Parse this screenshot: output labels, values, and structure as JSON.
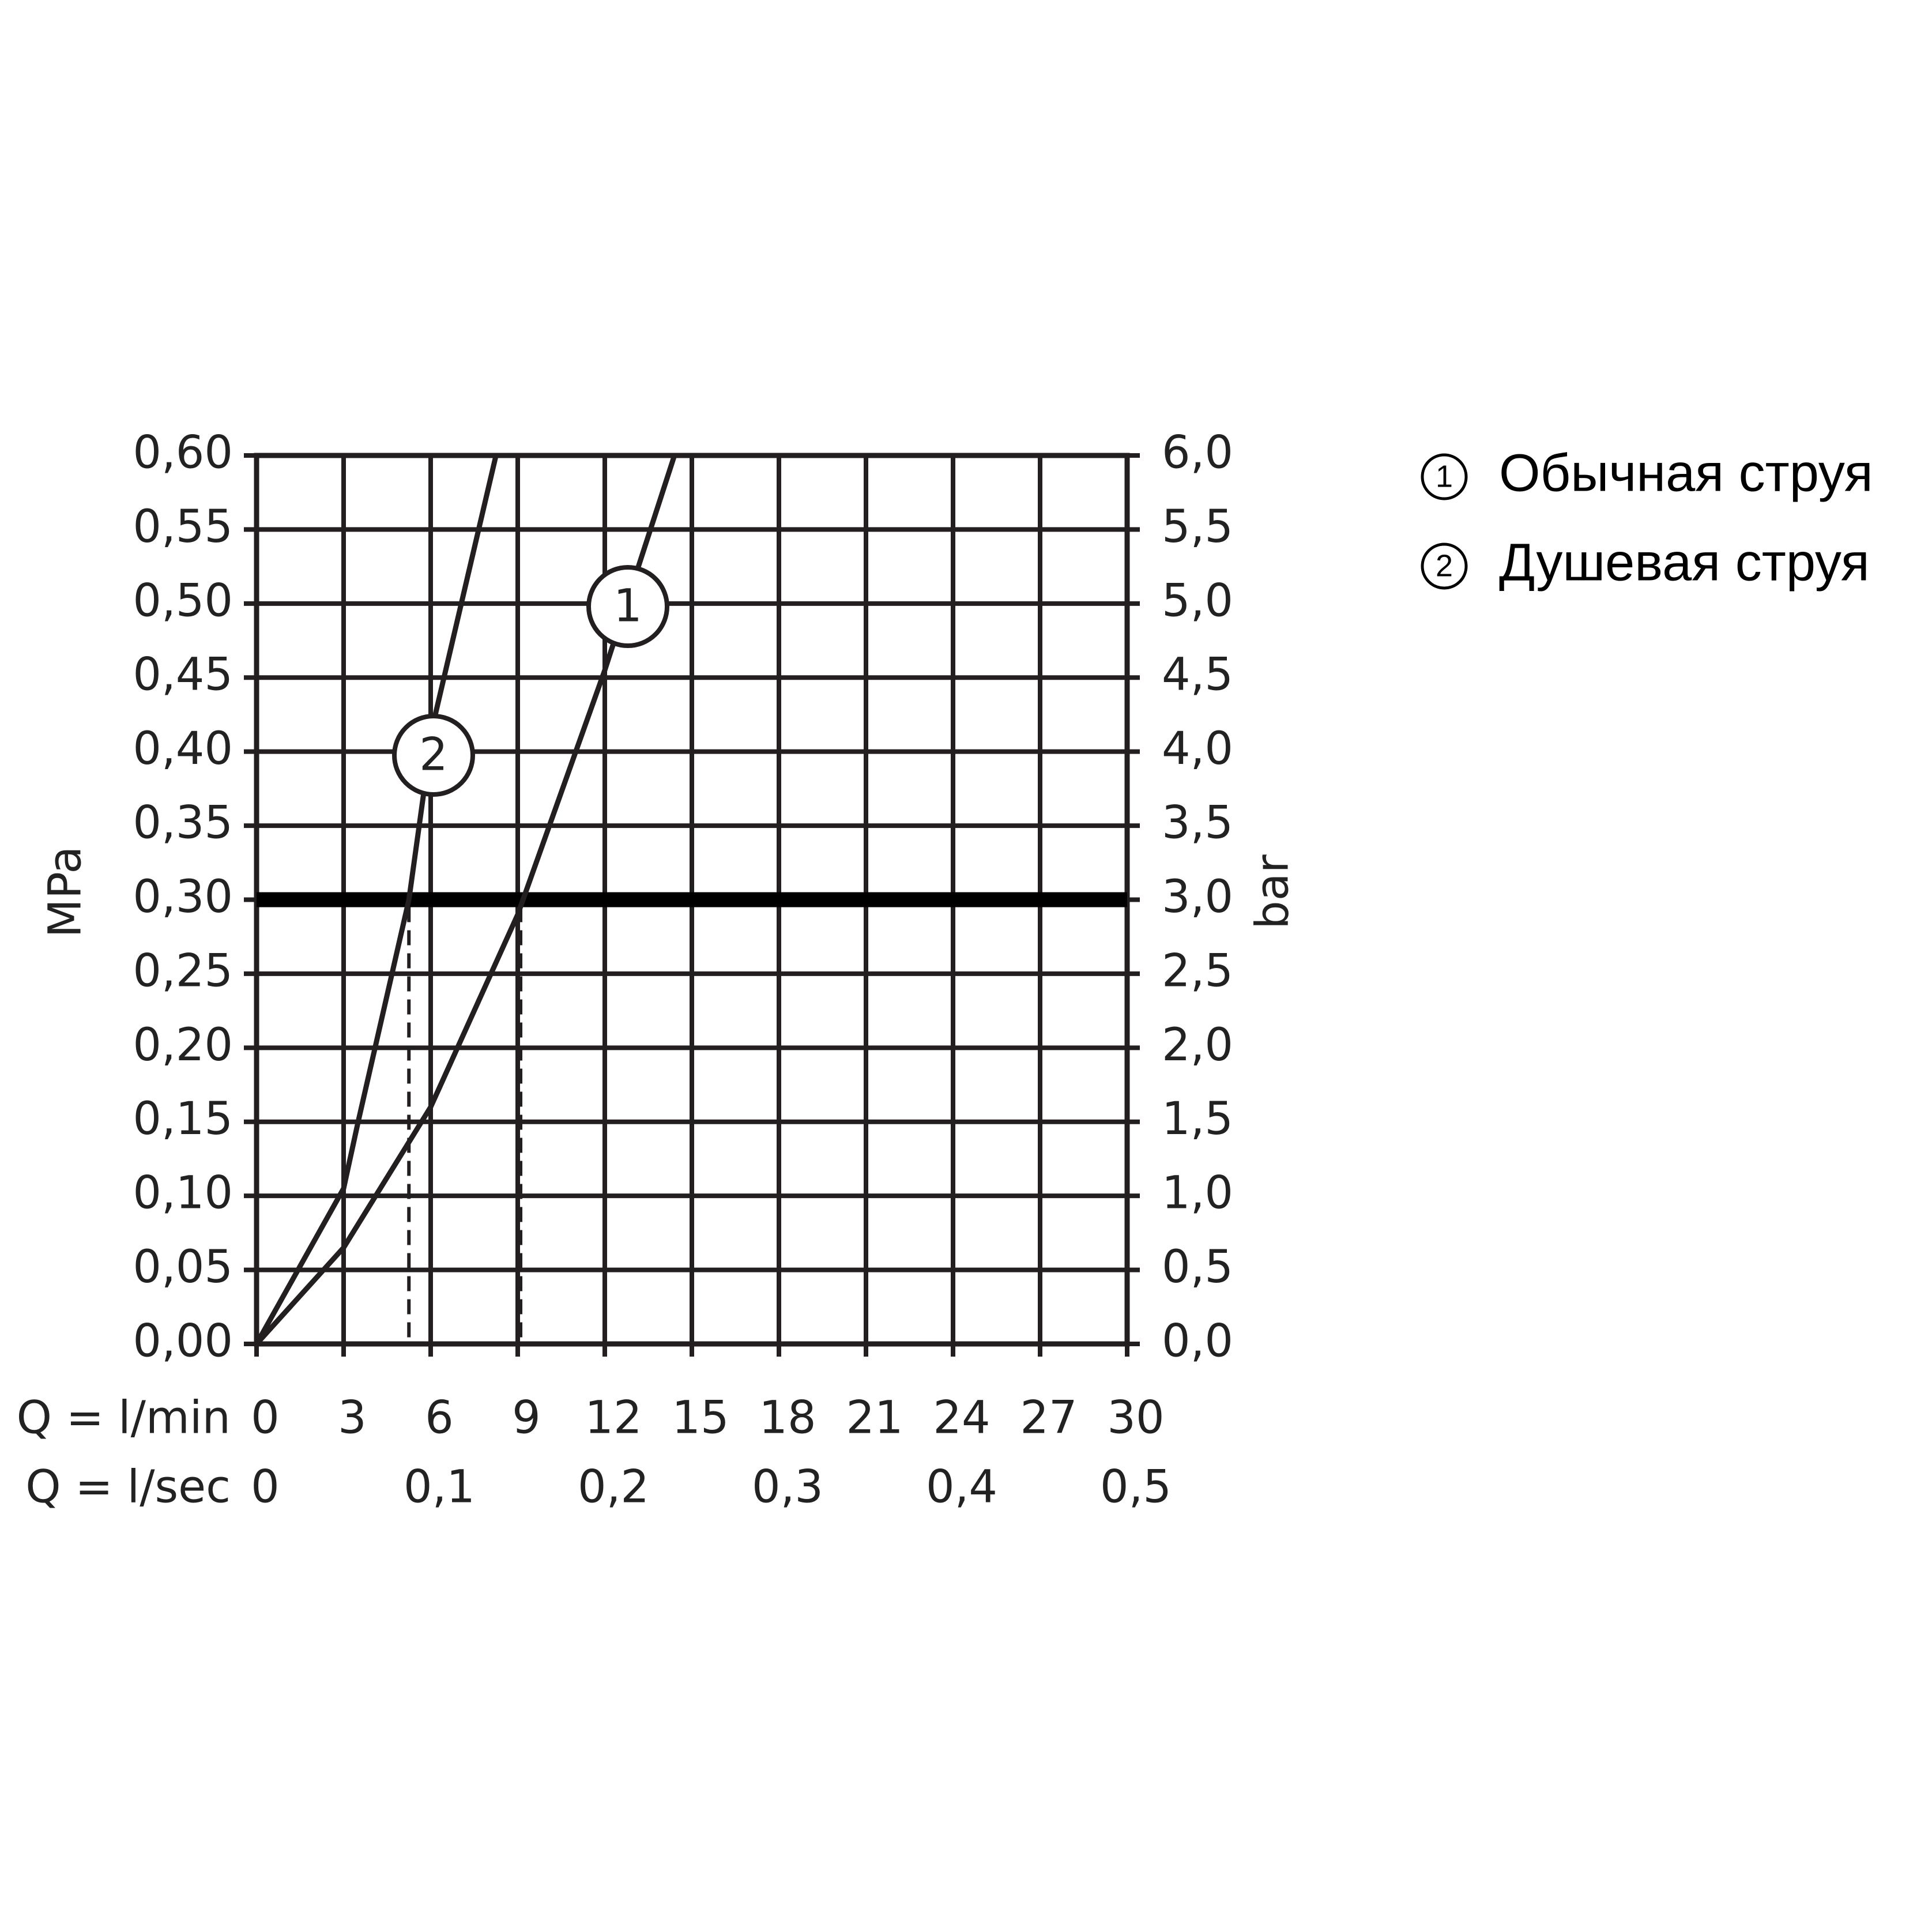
{
  "chart_data": {
    "type": "line",
    "y_label": "MPa",
    "y2_label": "bar",
    "x_label": "Q = l/min",
    "x2_label": "Q = l/sec",
    "xlim": [
      0,
      30
    ],
    "xticks": [
      0,
      3,
      6,
      9,
      12,
      15,
      18,
      21,
      24,
      27,
      30
    ],
    "x2lim": [
      0,
      0.5
    ],
    "x2ticks": [
      0,
      {
        "value": 0.1,
        "label": "0,1"
      },
      {
        "value": 0.2,
        "label": "0,2"
      },
      {
        "value": 0.3,
        "label": "0,3"
      },
      {
        "value": 0.4,
        "label": "0,4"
      },
      {
        "value": 0.5,
        "label": "0,5"
      }
    ],
    "ylim": [
      0,
      0.6
    ],
    "yticks": [
      {
        "value": 0,
        "label": "0,00"
      },
      {
        "value": 0.05,
        "label": "0,05"
      },
      {
        "value": 0.1,
        "label": "0,10"
      },
      {
        "value": 0.15,
        "label": "0,15"
      },
      {
        "value": 0.2,
        "label": "0,20"
      },
      {
        "value": 0.25,
        "label": "0,25"
      },
      {
        "value": 0.3,
        "label": "0,30"
      },
      {
        "value": 0.35,
        "label": "0,35"
      },
      {
        "value": 0.4,
        "label": "0,40"
      },
      {
        "value": 0.45,
        "label": "0,45"
      },
      {
        "value": 0.5,
        "label": "0,50"
      },
      {
        "value": 0.55,
        "label": "0,55"
      },
      {
        "value": 0.6,
        "label": "0,60"
      }
    ],
    "y2lim": [
      0,
      6
    ],
    "y2ticks": [
      {
        "value": 0,
        "label": "0,0"
      },
      {
        "value": 0.5,
        "label": "0,5"
      },
      {
        "value": 1,
        "label": "1,0"
      },
      {
        "value": 1.5,
        "label": "1,5"
      },
      {
        "value": 2,
        "label": "2,0"
      },
      {
        "value": 2.5,
        "label": "2,5"
      },
      {
        "value": 3,
        "label": "3,0"
      },
      {
        "value": 3.5,
        "label": "3,5"
      },
      {
        "value": 4,
        "label": "4,0"
      },
      {
        "value": 4.5,
        "label": "4,5"
      },
      {
        "value": 5,
        "label": "5,0"
      },
      {
        "value": 5.5,
        "label": "5,5"
      },
      {
        "value": 6,
        "label": "6,0"
      }
    ],
    "grid": true,
    "hline": 0.3,
    "vlines": [
      5.25,
      9.1
    ],
    "series": [
      {
        "name": "Обычная струя",
        "label": "1",
        "color": "#231f20",
        "x": [
          0,
          3,
          6,
          9,
          12,
          14.4
        ],
        "values": [
          0,
          0.065,
          0.16,
          0.29,
          0.455,
          0.6
        ]
      },
      {
        "name": "Душевая струя",
        "label": "2",
        "color": "#231f20",
        "x": [
          0,
          3,
          3.5,
          5.25,
          6.1,
          8.25
        ],
        "values": [
          0,
          0.105,
          0.15,
          0.3,
          0.42,
          0.6
        ]
      }
    ]
  }
}
